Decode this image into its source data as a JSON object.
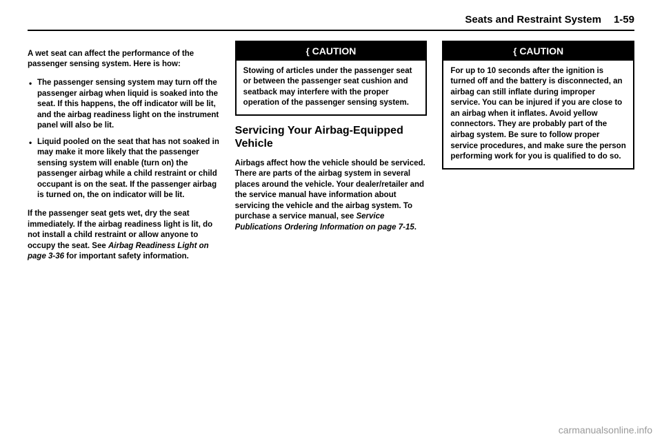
{
  "header": {
    "section_title": "Seats and Restraint System",
    "page_number": "1-59"
  },
  "col1": {
    "intro": "A wet seat can affect the performance of the passenger sensing system. Here is how:",
    "bullets": [
      "The passenger sensing system may turn off the passenger airbag when liquid is soaked into the seat. If this happens, the off indicator will be lit, and the airbag readiness light on the instrument panel will also be lit.",
      "Liquid pooled on the seat that has not soaked in may make it more likely that the passenger sensing system will enable (turn on) the passenger airbag while a child restraint or child occupant is on the seat. If the passenger airbag is turned on, the on indicator will be lit."
    ],
    "outro_part1": "If the passenger seat gets wet, dry the seat immediately. If the airbag readiness light is lit, do not install a child restraint or allow anyone to occupy the seat. See ",
    "outro_xref": "Airbag Readiness Light on page 3-36",
    "outro_part2": " for important safety information."
  },
  "col2": {
    "caution_label": "CAUTION",
    "caution_body": "Stowing of articles under the passenger seat or between the passenger seat cushion and seatback may interfere with the proper operation of the passenger sensing system.",
    "heading": "Servicing Your Airbag-Equipped Vehicle",
    "body_part1": "Airbags affect how the vehicle should be serviced. There are parts of the airbag system in several places around the vehicle. Your dealer/retailer and the service manual have information about servicing the vehicle and the airbag system. To purchase a service manual, see ",
    "body_xref": "Service Publications Ordering Information on page 7-15",
    "body_part2": "."
  },
  "col3": {
    "caution_label": "CAUTION",
    "caution_body": "For up to 10 seconds after the ignition is turned off and the battery is disconnected, an airbag can still inflate during improper service. You can be injured if you are close to an airbag when it inflates. Avoid yellow connectors. They are probably part of the airbag system. Be sure to follow proper service procedures, and make sure the person performing work for you is qualified to do so."
  },
  "watermark": "carmanualsonline.info"
}
